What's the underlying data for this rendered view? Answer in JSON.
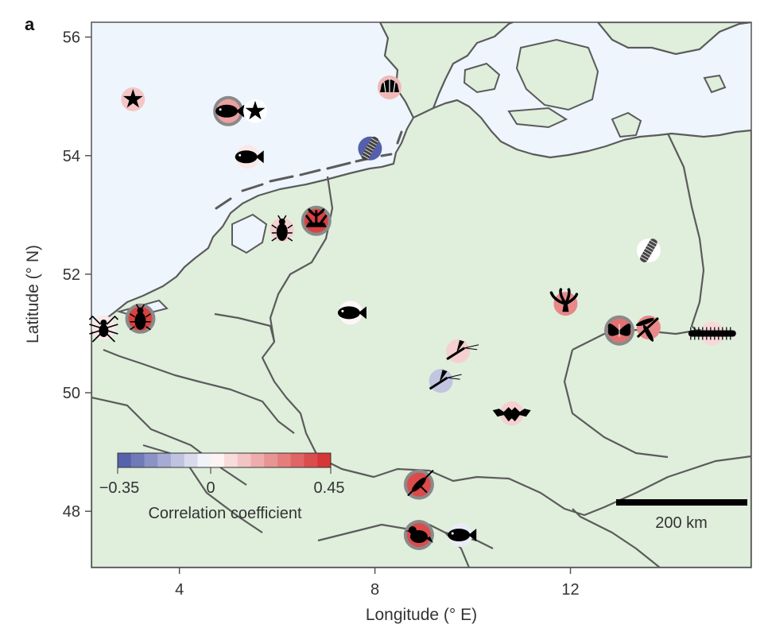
{
  "panel_label": "a",
  "axes": {
    "xlabel": "Longitude (° E)",
    "ylabel": "Latitude (° N)",
    "xlim": [
      2.2,
      15.7
    ],
    "ylim": [
      47.05,
      56.25
    ],
    "xticks": [
      4,
      8,
      12
    ],
    "yticks": [
      48,
      50,
      52,
      54,
      56
    ]
  },
  "colorbar": {
    "min_label": "−0.35",
    "zero_label": "0",
    "max_label": "0.45",
    "title": "Correlation coefficient",
    "min": -0.35,
    "max": 0.45,
    "negative_color": "#4a56a6",
    "positive_color": "#d42a2a"
  },
  "scale_bar": {
    "label": "200 km"
  },
  "colors": {
    "sea": "#eef5fd",
    "land": "#e0eedc",
    "border": "#5b5b5b",
    "significant_ring": "#8a8a8a"
  },
  "sites": [
    {
      "taxon": "starfish",
      "lon": 3.05,
      "lat": 54.95,
      "r": 0.12,
      "significant": false
    },
    {
      "taxon": "fish",
      "lon": 5.0,
      "lat": 54.75,
      "r": 0.2,
      "significant": true
    },
    {
      "taxon": "starfish",
      "lon": 5.55,
      "lat": 54.75,
      "r": 0.0,
      "significant": false
    },
    {
      "taxon": "fish",
      "lon": 5.4,
      "lat": 53.98,
      "r": 0.05,
      "significant": false
    },
    {
      "taxon": "shell",
      "lon": 8.3,
      "lat": 55.15,
      "r": 0.15,
      "significant": false
    },
    {
      "taxon": "worm",
      "lon": 7.9,
      "lat": 54.12,
      "r": -0.33,
      "significant": false
    },
    {
      "taxon": "beetle",
      "lon": 6.1,
      "lat": 52.75,
      "r": 0.1,
      "significant": false
    },
    {
      "taxon": "coral",
      "lon": 6.8,
      "lat": 52.9,
      "r": 0.4,
      "significant": true
    },
    {
      "taxon": "worm",
      "lon": 13.6,
      "lat": 52.4,
      "r": 0.0,
      "significant": false
    },
    {
      "taxon": "spider",
      "lon": 2.45,
      "lat": 51.1,
      "r": 0.05,
      "significant": false
    },
    {
      "taxon": "beetle",
      "lon": 3.2,
      "lat": 51.25,
      "r": 0.4,
      "significant": true
    },
    {
      "taxon": "fish",
      "lon": 7.5,
      "lat": 51.35,
      "r": 0.02,
      "significant": false
    },
    {
      "taxon": "plant",
      "lon": 11.9,
      "lat": 51.5,
      "r": 0.25,
      "significant": false
    },
    {
      "taxon": "butterfly",
      "lon": 13.0,
      "lat": 51.05,
      "r": 0.3,
      "significant": true
    },
    {
      "taxon": "dragonfly",
      "lon": 13.6,
      "lat": 51.1,
      "r": 0.25,
      "significant": false
    },
    {
      "taxon": "millipede",
      "lon": 14.9,
      "lat": 51.0,
      "r": 0.08,
      "significant": false
    },
    {
      "taxon": "mayfly",
      "lon": 9.7,
      "lat": 50.7,
      "r": 0.1,
      "significant": false
    },
    {
      "taxon": "mayfly",
      "lon": 9.35,
      "lat": 50.2,
      "r": -0.12,
      "significant": false
    },
    {
      "taxon": "bat",
      "lon": 10.8,
      "lat": 49.65,
      "r": 0.1,
      "significant": false
    },
    {
      "taxon": "grasshopper",
      "lon": 8.9,
      "lat": 48.45,
      "r": 0.38,
      "significant": true
    },
    {
      "taxon": "bird",
      "lon": 8.9,
      "lat": 47.6,
      "r": 0.38,
      "significant": true
    },
    {
      "taxon": "fish",
      "lon": 9.75,
      "lat": 47.6,
      "r": -0.04,
      "significant": false
    }
  ]
}
